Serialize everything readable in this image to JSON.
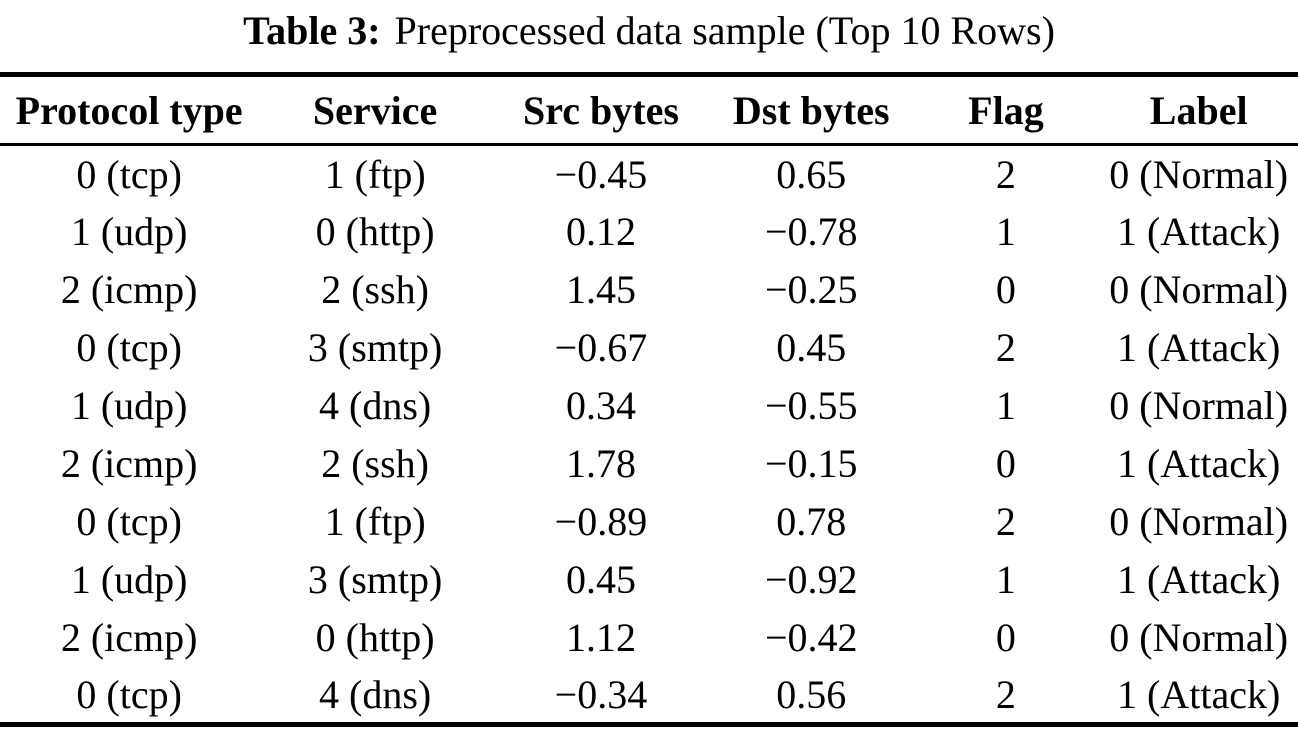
{
  "table": {
    "caption_label": "Table 3:",
    "caption_text": "Preprocessed data sample (Top 10 Rows)",
    "columns": [
      "Protocol type",
      "Service",
      "Src bytes",
      "Dst bytes",
      "Flag",
      "Label"
    ],
    "rows": [
      [
        "0 (tcp)",
        "1 (ftp)",
        "−0.45",
        "0.65",
        "2",
        "0 (Normal)"
      ],
      [
        "1 (udp)",
        "0 (http)",
        "0.12",
        "−0.78",
        "1",
        "1 (Attack)"
      ],
      [
        "2 (icmp)",
        "2 (ssh)",
        "1.45",
        "−0.25",
        "0",
        "0 (Normal)"
      ],
      [
        "0 (tcp)",
        "3 (smtp)",
        "−0.67",
        "0.45",
        "2",
        "1 (Attack)"
      ],
      [
        "1 (udp)",
        "4 (dns)",
        "0.34",
        "−0.55",
        "1",
        "0 (Normal)"
      ],
      [
        "2 (icmp)",
        "2 (ssh)",
        "1.78",
        "−0.15",
        "0",
        "1 (Attack)"
      ],
      [
        "0 (tcp)",
        "1 (ftp)",
        "−0.89",
        "0.78",
        "2",
        "0 (Normal)"
      ],
      [
        "1 (udp)",
        "3 (smtp)",
        "0.45",
        "−0.92",
        "1",
        "1 (Attack)"
      ],
      [
        "2 (icmp)",
        "0 (http)",
        "1.12",
        "−0.42",
        "0",
        "0 (Normal)"
      ],
      [
        "0 (tcp)",
        "4 (dns)",
        "−0.34",
        "0.56",
        "2",
        "1 (Attack)"
      ]
    ],
    "column_widths_pct": [
      19.9,
      18.0,
      16.8,
      15.6,
      14.4,
      15.3
    ],
    "text_color": "#000000",
    "rule_color": "#000000",
    "background_color": "#ffffff"
  }
}
